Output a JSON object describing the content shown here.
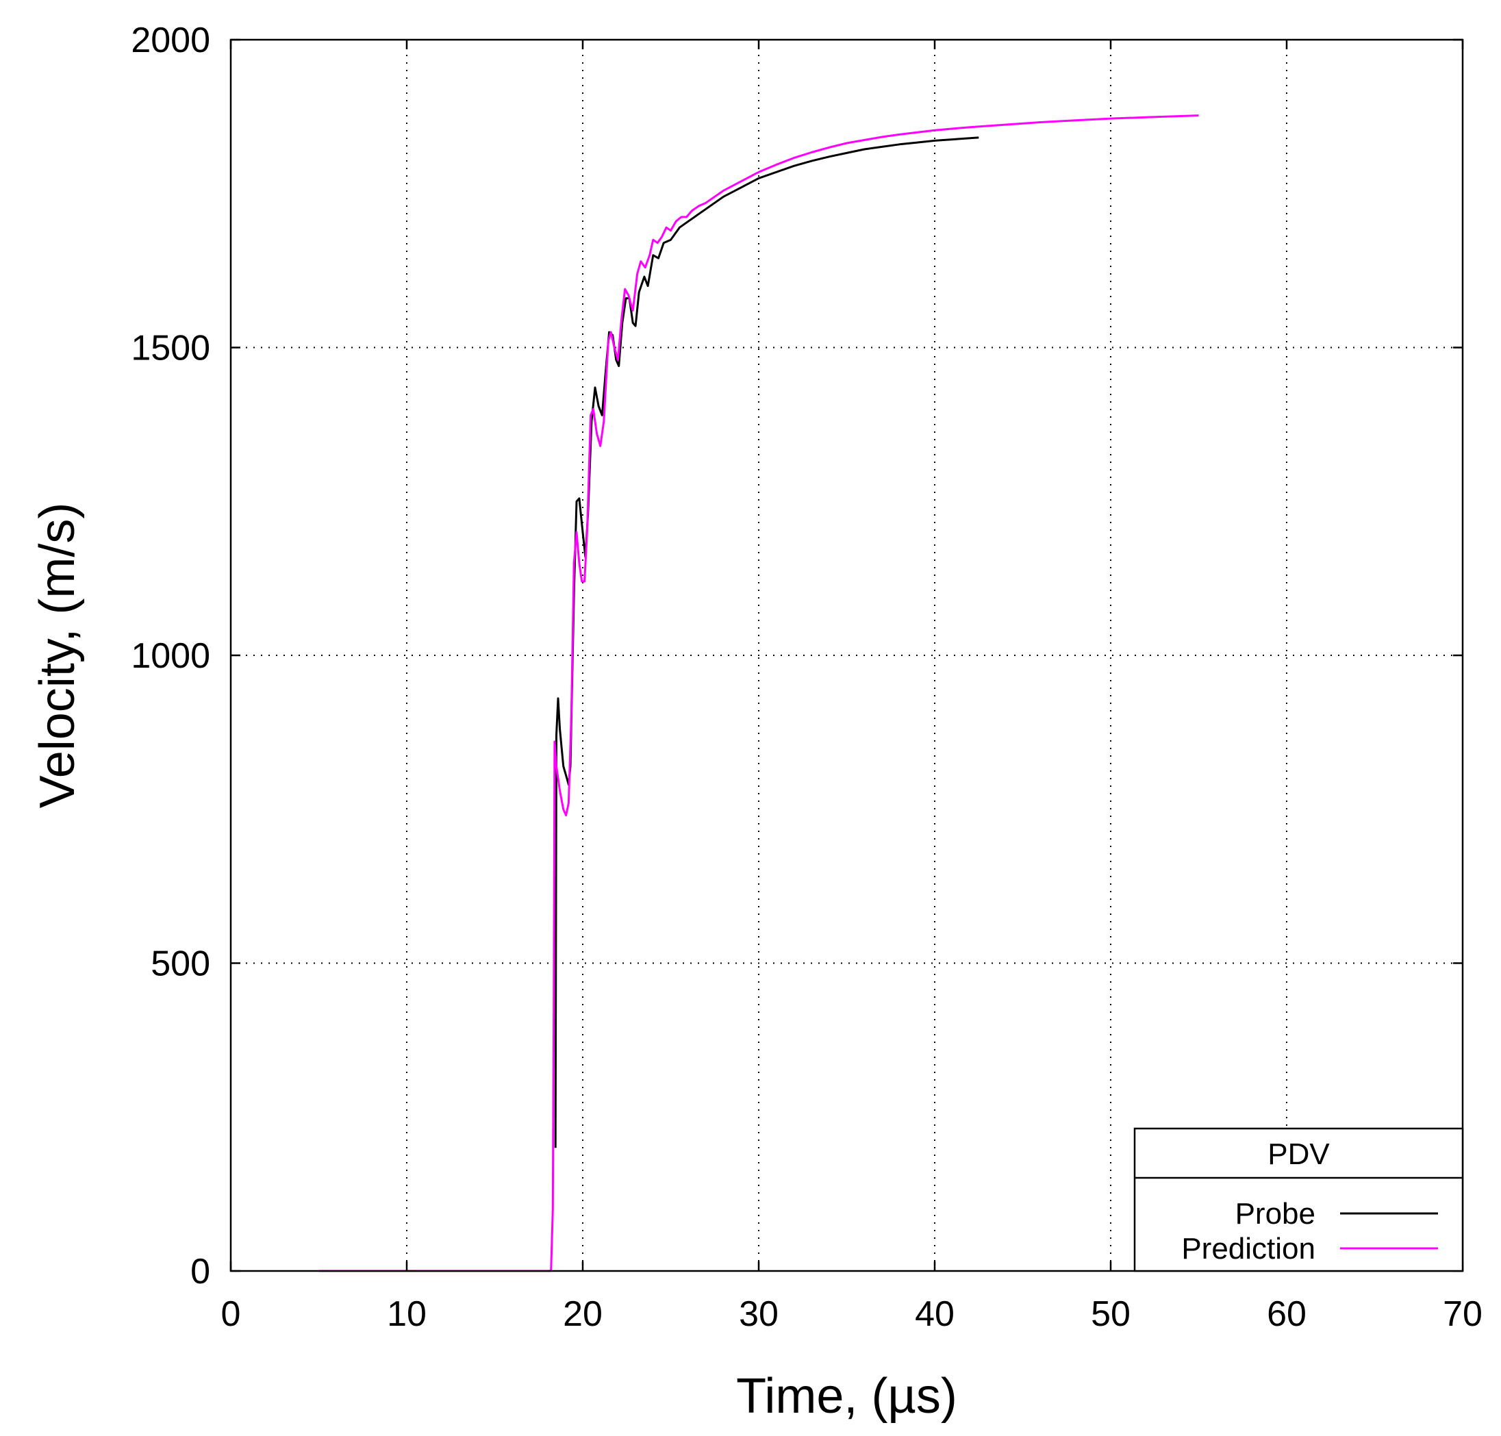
{
  "chart_data": {
    "type": "line",
    "title": "",
    "xlabel": "Time, (µs)",
    "ylabel": "Velocity, (m/s)",
    "xlim": [
      0,
      70
    ],
    "ylim": [
      0,
      2000
    ],
    "x_ticks": [
      0,
      10,
      20,
      30,
      40,
      50,
      60,
      70
    ],
    "y_ticks": [
      0,
      500,
      1000,
      1500,
      2000
    ],
    "grid": true,
    "legend": {
      "title": "PDV",
      "position": "bottom-right",
      "entries": [
        "Probe",
        "Prediction"
      ]
    },
    "series": [
      {
        "name": "Probe",
        "color": "#000000",
        "points": [
          [
            18.45,
            200
          ],
          [
            18.5,
            870
          ],
          [
            18.6,
            930
          ],
          [
            18.7,
            880
          ],
          [
            18.9,
            820
          ],
          [
            19.1,
            800
          ],
          [
            19.2,
            790
          ],
          [
            19.3,
            820
          ],
          [
            19.5,
            1100
          ],
          [
            19.65,
            1250
          ],
          [
            19.8,
            1255
          ],
          [
            20.0,
            1200
          ],
          [
            20.15,
            1160
          ],
          [
            20.3,
            1230
          ],
          [
            20.5,
            1380
          ],
          [
            20.7,
            1435
          ],
          [
            20.9,
            1405
          ],
          [
            21.1,
            1390
          ],
          [
            21.3,
            1460
          ],
          [
            21.5,
            1525
          ],
          [
            21.7,
            1520
          ],
          [
            21.9,
            1480
          ],
          [
            22.05,
            1470
          ],
          [
            22.25,
            1540
          ],
          [
            22.45,
            1580
          ],
          [
            22.65,
            1580
          ],
          [
            22.85,
            1540
          ],
          [
            23.0,
            1535
          ],
          [
            23.2,
            1590
          ],
          [
            23.5,
            1615
          ],
          [
            23.7,
            1600
          ],
          [
            24.0,
            1650
          ],
          [
            24.3,
            1645
          ],
          [
            24.6,
            1670
          ],
          [
            25.0,
            1675
          ],
          [
            25.5,
            1695
          ],
          [
            26.0,
            1705
          ],
          [
            26.5,
            1715
          ],
          [
            27.0,
            1725
          ],
          [
            28.0,
            1745
          ],
          [
            29.0,
            1760
          ],
          [
            30.0,
            1775
          ],
          [
            31.0,
            1785
          ],
          [
            32.0,
            1795
          ],
          [
            33.0,
            1803
          ],
          [
            34.0,
            1810
          ],
          [
            35.0,
            1816
          ],
          [
            36.0,
            1822
          ],
          [
            37.0,
            1826
          ],
          [
            38.0,
            1830
          ],
          [
            39.0,
            1833
          ],
          [
            40.0,
            1836
          ],
          [
            41.0,
            1838
          ],
          [
            42.0,
            1840
          ],
          [
            42.5,
            1841
          ]
        ]
      },
      {
        "name": "Prediction",
        "color": "#ff00ff",
        "points": [
          [
            5.0,
            0
          ],
          [
            18.2,
            0
          ],
          [
            18.3,
            100
          ],
          [
            18.35,
            400
          ],
          [
            18.4,
            860
          ],
          [
            18.5,
            820
          ],
          [
            18.7,
            780
          ],
          [
            18.9,
            750
          ],
          [
            19.05,
            740
          ],
          [
            19.2,
            760
          ],
          [
            19.35,
            900
          ],
          [
            19.5,
            1150
          ],
          [
            19.65,
            1200
          ],
          [
            19.8,
            1150
          ],
          [
            19.95,
            1120
          ],
          [
            20.1,
            1120
          ],
          [
            20.25,
            1200
          ],
          [
            20.45,
            1390
          ],
          [
            20.6,
            1400
          ],
          [
            20.8,
            1360
          ],
          [
            21.0,
            1340
          ],
          [
            21.2,
            1380
          ],
          [
            21.45,
            1510
          ],
          [
            21.6,
            1525
          ],
          [
            21.8,
            1500
          ],
          [
            22.0,
            1480
          ],
          [
            22.2,
            1545
          ],
          [
            22.4,
            1595
          ],
          [
            22.6,
            1585
          ],
          [
            22.85,
            1560
          ],
          [
            23.1,
            1620
          ],
          [
            23.3,
            1640
          ],
          [
            23.55,
            1630
          ],
          [
            23.8,
            1650
          ],
          [
            24.0,
            1675
          ],
          [
            24.25,
            1670
          ],
          [
            24.5,
            1680
          ],
          [
            24.75,
            1695
          ],
          [
            25.0,
            1690
          ],
          [
            25.3,
            1705
          ],
          [
            25.6,
            1712
          ],
          [
            25.9,
            1712
          ],
          [
            26.2,
            1722
          ],
          [
            26.6,
            1730
          ],
          [
            27.0,
            1735
          ],
          [
            27.5,
            1745
          ],
          [
            28.0,
            1755
          ],
          [
            29.0,
            1770
          ],
          [
            30.0,
            1785
          ],
          [
            31.0,
            1797
          ],
          [
            32.0,
            1808
          ],
          [
            33.0,
            1817
          ],
          [
            34.0,
            1825
          ],
          [
            35.0,
            1832
          ],
          [
            36.0,
            1837
          ],
          [
            37.0,
            1842
          ],
          [
            38.0,
            1846
          ],
          [
            40.0,
            1853
          ],
          [
            42.0,
            1858
          ],
          [
            44.0,
            1862
          ],
          [
            46.0,
            1866
          ],
          [
            48.0,
            1869
          ],
          [
            50.0,
            1872
          ],
          [
            52.0,
            1874
          ],
          [
            54.0,
            1876
          ],
          [
            55.0,
            1877
          ]
        ]
      }
    ]
  }
}
